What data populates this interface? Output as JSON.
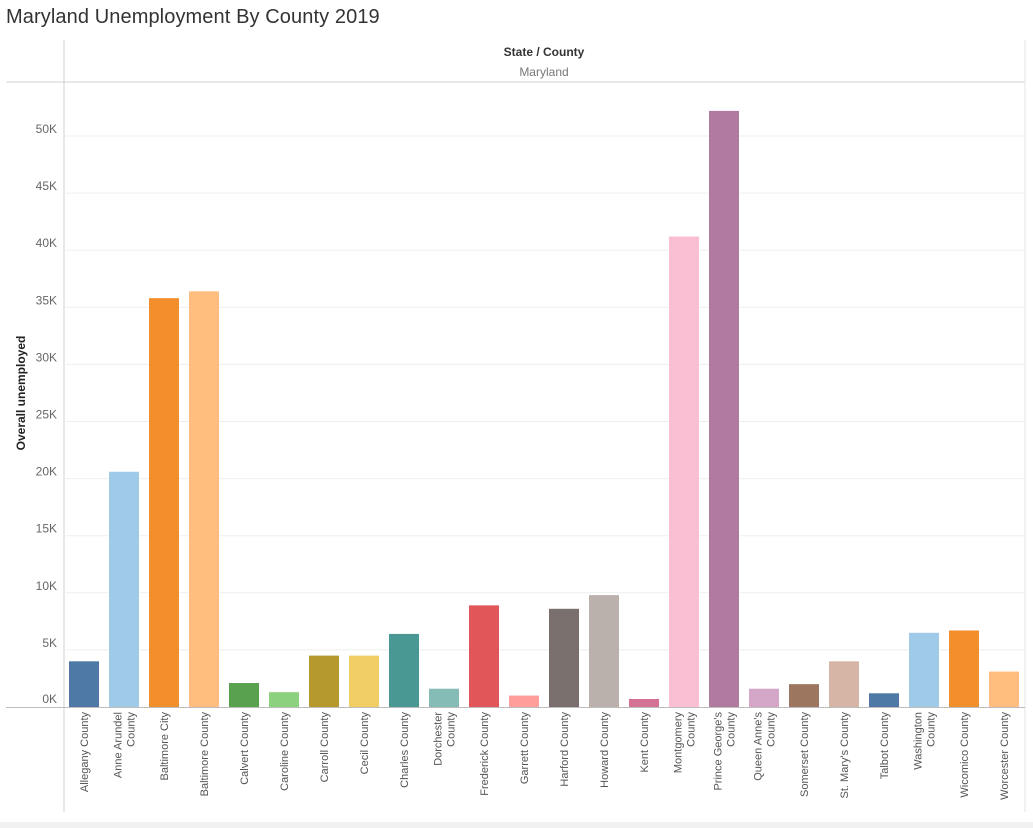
{
  "title": "Maryland Unemployment By County 2019",
  "chart_data": {
    "type": "bar",
    "title": "Maryland Unemployment By County 2019",
    "header_label": "State / County",
    "header_value": "Maryland",
    "ylabel": "Overall unemployed",
    "xlabel": "",
    "ylim": [
      0,
      54000
    ],
    "yticks": [
      0,
      5000,
      10000,
      15000,
      20000,
      25000,
      30000,
      35000,
      40000,
      45000,
      50000
    ],
    "ytick_labels": [
      "0K",
      "5K",
      "10K",
      "15K",
      "20K",
      "25K",
      "30K",
      "35K",
      "40K",
      "45K",
      "50K"
    ],
    "grid": true,
    "categories": [
      "Allegany County",
      "Anne Arundel County",
      "Baltimore City",
      "Baltimore County",
      "Calvert County",
      "Caroline County",
      "Carroll County",
      "Cecil County",
      "Charles County",
      "Dorchester County",
      "Frederick County",
      "Garrett County",
      "Harford County",
      "Howard County",
      "Kent County",
      "Montgomery County",
      "Prince George's County",
      "Queen Anne's County",
      "Somerset County",
      "St. Mary's County",
      "Talbot County",
      "Washington County",
      "Wicomico County",
      "Worcester County"
    ],
    "category_lines": [
      [
        "Allegany County"
      ],
      [
        "Anne Arundel",
        "County"
      ],
      [
        "Baltimore City"
      ],
      [
        "Baltimore County"
      ],
      [
        "Calvert County"
      ],
      [
        "Caroline County"
      ],
      [
        "Carroll County"
      ],
      [
        "Cecil County"
      ],
      [
        "Charles County"
      ],
      [
        "Dorchester",
        "County"
      ],
      [
        "Frederick County"
      ],
      [
        "Garrett County"
      ],
      [
        "Harford County"
      ],
      [
        "Howard County"
      ],
      [
        "Kent County"
      ],
      [
        "Montgomery",
        "County"
      ],
      [
        "Prince George's",
        "County"
      ],
      [
        "Queen Anne's",
        "County"
      ],
      [
        "Somerset County"
      ],
      [
        "St. Mary's County"
      ],
      [
        "Talbot County"
      ],
      [
        "Washington",
        "County"
      ],
      [
        "Wicomico County"
      ],
      [
        "Worcester County"
      ]
    ],
    "values": [
      4000,
      20600,
      35800,
      36400,
      2100,
      1300,
      4500,
      4500,
      6400,
      1600,
      8900,
      1000,
      8600,
      9800,
      700,
      41200,
      52200,
      1600,
      2000,
      4000,
      1200,
      6500,
      6700,
      3100
    ],
    "colors": [
      "#4e79a7",
      "#a0cbe8",
      "#f28e2b",
      "#ffbe7d",
      "#59a14f",
      "#8cd17d",
      "#b6992d",
      "#f1ce63",
      "#499894",
      "#86bcb6",
      "#e15759",
      "#ff9d9a",
      "#79706e",
      "#bab0ac",
      "#d37295",
      "#fabfd2",
      "#b07aa1",
      "#d4a6c8",
      "#9d7660",
      "#d7b5a6",
      "#4e79a7",
      "#a0cbe8",
      "#f28e2b",
      "#ffbe7d"
    ]
  }
}
